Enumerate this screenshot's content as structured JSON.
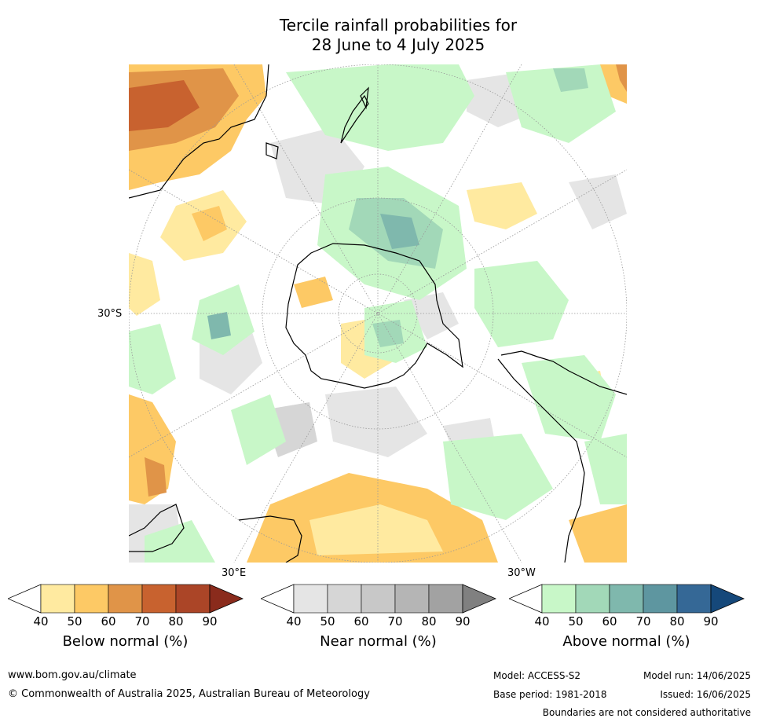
{
  "title": {
    "line1": "Tercile rainfall probabilities for",
    "line2": "28 June to 4 July 2025"
  },
  "map": {
    "lat_label_left": "30°S",
    "lon_label_east": "30°E",
    "lon_label_west": "30°W"
  },
  "colorbars": [
    {
      "label": "Below normal (%)",
      "ticks": [
        "40",
        "50",
        "60",
        "70",
        "80",
        "90"
      ],
      "colors": [
        "#ffffff",
        "#ffeaa0",
        "#fdc965",
        "#e09448",
        "#c8622f",
        "#ab4527",
        "#8a2b1c"
      ]
    },
    {
      "label": "Near normal (%)",
      "ticks": [
        "40",
        "50",
        "60",
        "70",
        "80",
        "90"
      ],
      "colors": [
        "#ffffff",
        "#e5e5e5",
        "#d6d6d6",
        "#c8c8c8",
        "#b5b5b5",
        "#a2a2a2",
        "#808080"
      ]
    },
    {
      "label": "Above normal (%)",
      "ticks": [
        "40",
        "50",
        "60",
        "70",
        "80",
        "90"
      ],
      "colors": [
        "#ffffff",
        "#c8f7c8",
        "#a2d8b8",
        "#7fb8ad",
        "#5e96a0",
        "#356896",
        "#15487a"
      ]
    }
  ],
  "footer": {
    "website": "www.bom.gov.au/climate",
    "copyright": "© Commonwealth of Australia 2025, Australian Bureau of Meteorology",
    "model": "Model: ACCESS-S2",
    "base_period": "Base period: 1981-2018",
    "model_run": "Model run: 14/06/2025",
    "issued": "Issued: 16/06/2025",
    "boundaries_note": "Boundaries are not considered authoritative"
  }
}
